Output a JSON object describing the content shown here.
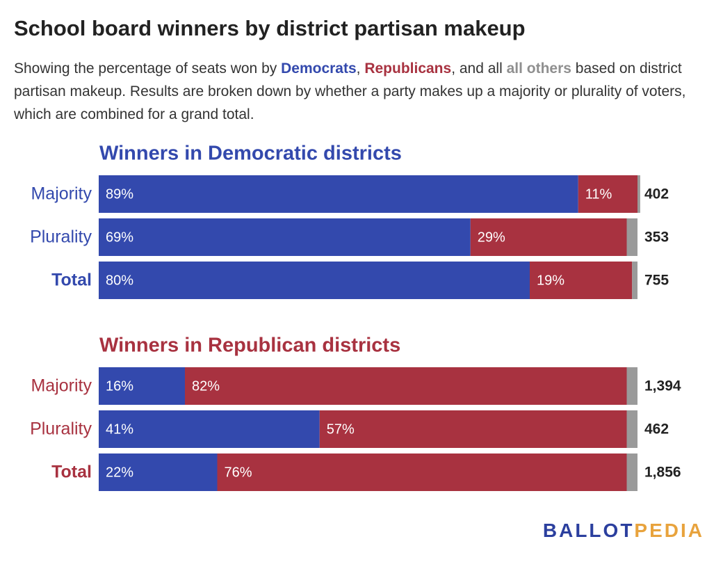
{
  "title": "School board winners by district partisan makeup",
  "subtitle": [
    {
      "text": "Showing the percentage of seats won by "
    },
    {
      "text": "Democrats",
      "color": "#3349ad"
    },
    {
      "text": ", "
    },
    {
      "text": "Republicans",
      "color": "#a83240"
    },
    {
      "text": ", and all "
    },
    {
      "text": "all others",
      "color": "#8f8f8f"
    },
    {
      "text": " based on district partisan makeup. Results are broken down by whether a party makes up a majority or plurality of voters, which are combined for a grand total."
    }
  ],
  "chart_data": [
    {
      "type": "stacked_bar",
      "title": "Winners in Democratic districts",
      "title_color": "#3349ad",
      "categories": [
        "Majority",
        "Plurality",
        "Total"
      ],
      "xlim": [
        0,
        100
      ],
      "series": [
        {
          "color": "#3349ad",
          "values": [
            89,
            69,
            80
          ],
          "value_labels": [
            "89%",
            "69%",
            "80%"
          ]
        },
        {
          "color": "#a83240",
          "values": [
            11,
            29,
            19
          ],
          "value_labels": [
            "11%",
            "29%",
            "19%"
          ]
        },
        {
          "color": "#9a9a9a",
          "values": [
            0.5,
            2,
            1
          ]
        }
      ],
      "totals": {
        "values": [
          402,
          353,
          755
        ]
      }
    },
    {
      "type": "stacked_bar",
      "title": "Winners in Republican districts",
      "title_color": "#a83240",
      "categories": [
        "Majority",
        "Plurality",
        "Total"
      ],
      "xlim": [
        0,
        100
      ],
      "series": [
        {
          "color": "#3349ad",
          "values": [
            16,
            41,
            22
          ],
          "value_labels": [
            "16%",
            "41%",
            "22%"
          ]
        },
        {
          "color": "#a83240",
          "values": [
            82,
            57,
            76
          ],
          "value_labels": [
            "82%",
            "57%",
            "76%"
          ]
        },
        {
          "color": "#9a9a9a",
          "values": [
            2,
            2,
            2
          ]
        }
      ],
      "totals": {
        "values": [
          1394,
          462,
          1856
        ],
        "value_labels": [
          "1,394",
          "462",
          "1,856"
        ]
      }
    }
  ],
  "logo": {
    "parts": [
      {
        "text": "BALLOT",
        "color": "#2b3f9e"
      },
      {
        "text": "PEDIA",
        "color": "#e8a33d"
      }
    ]
  }
}
